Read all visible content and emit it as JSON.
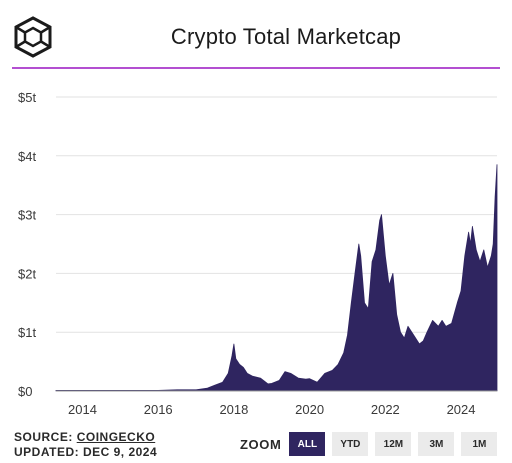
{
  "header": {
    "title": "Crypto Total Marketcap",
    "logo_icon": "cube-outline-icon",
    "accent_color": "#b34fd1"
  },
  "chart_data": {
    "type": "area",
    "title": "Crypto Total Marketcap",
    "xlabel": "",
    "ylabel": "",
    "x_ticks": [
      "2014",
      "2016",
      "2018",
      "2020",
      "2022",
      "2024"
    ],
    "y_ticks": [
      "$0",
      "$1t",
      "$2t",
      "$3t",
      "$4t",
      "$5t"
    ],
    "xlim": [
      2013.3,
      2024.95
    ],
    "ylim": [
      0,
      5
    ],
    "y_unit": "trillion USD",
    "grid": true,
    "fill_color": "#2f2560",
    "series": [
      {
        "x": [
          2013.3,
          2014.0,
          2015.0,
          2016.0,
          2016.5,
          2017.0,
          2017.3,
          2017.5,
          2017.7,
          2017.85,
          2017.95,
          2018.0,
          2018.05,
          2018.15,
          2018.25,
          2018.35,
          2018.5,
          2018.7,
          2018.9,
          2019.0,
          2019.2,
          2019.35,
          2019.5,
          2019.7,
          2019.9,
          2020.0,
          2020.2,
          2020.4,
          2020.6,
          2020.75,
          2020.9,
          2021.0,
          2021.1,
          2021.2,
          2021.3,
          2021.35,
          2021.45,
          2021.55,
          2021.65,
          2021.75,
          2021.85,
          2021.9,
          2022.0,
          2022.1,
          2022.2,
          2022.3,
          2022.4,
          2022.5,
          2022.6,
          2022.75,
          2022.9,
          2023.0,
          2023.1,
          2023.25,
          2023.4,
          2023.5,
          2023.6,
          2023.75,
          2023.9,
          2024.0,
          2024.1,
          2024.2,
          2024.25,
          2024.3,
          2024.4,
          2024.5,
          2024.6,
          2024.7,
          2024.8,
          2024.85,
          2024.9,
          2024.95
        ],
        "values": [
          0.01,
          0.01,
          0.01,
          0.01,
          0.02,
          0.02,
          0.05,
          0.1,
          0.15,
          0.3,
          0.6,
          0.8,
          0.55,
          0.45,
          0.4,
          0.3,
          0.25,
          0.22,
          0.12,
          0.13,
          0.18,
          0.33,
          0.3,
          0.22,
          0.2,
          0.21,
          0.15,
          0.3,
          0.35,
          0.45,
          0.65,
          0.95,
          1.5,
          2.0,
          2.5,
          2.3,
          1.5,
          1.4,
          2.2,
          2.4,
          2.9,
          3.0,
          2.3,
          1.8,
          2.0,
          1.3,
          1.0,
          0.9,
          1.1,
          0.95,
          0.8,
          0.85,
          1.0,
          1.2,
          1.1,
          1.2,
          1.1,
          1.15,
          1.5,
          1.7,
          2.3,
          2.7,
          2.5,
          2.8,
          2.4,
          2.2,
          2.4,
          2.1,
          2.3,
          2.5,
          3.3,
          3.85
        ]
      }
    ]
  },
  "footer": {
    "source_label": "SOURCE:",
    "source_link": "COINGECKO",
    "updated": "UPDATED: DEC 9, 2024"
  },
  "zoom": {
    "label": "ZOOM",
    "options": [
      "ALL",
      "YTD",
      "12M",
      "3M",
      "1M"
    ],
    "active": "ALL"
  }
}
